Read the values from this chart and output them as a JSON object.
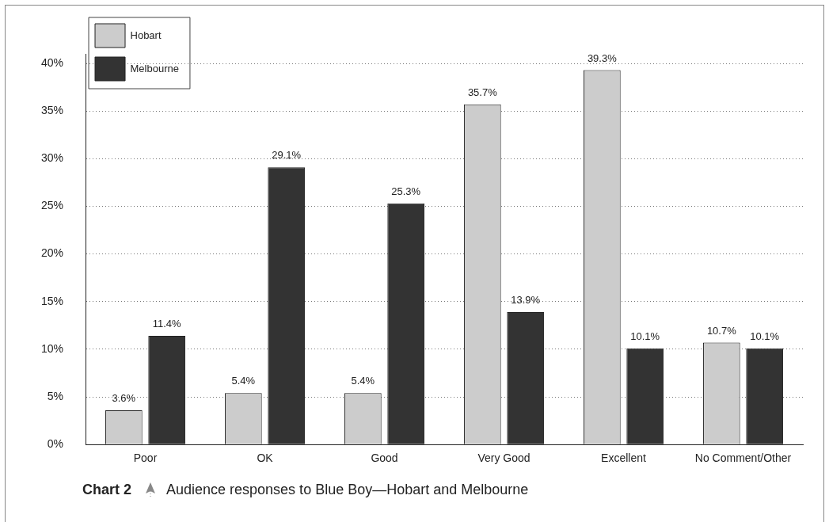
{
  "chart_data": {
    "type": "bar",
    "title": "Chart 2",
    "subtitle": "Audience responses to Blue Boy—Hobart and Melbourne",
    "categories": [
      "Poor",
      "OK",
      "Good",
      "Very Good",
      "Excellent",
      "No Comment/Other"
    ],
    "series": [
      {
        "name": "Hobart",
        "color": "#cccccc",
        "values": [
          3.6,
          5.4,
          5.4,
          35.7,
          39.3,
          10.7
        ],
        "value_labels": [
          "3.6%",
          "5.4%",
          "5.4%",
          "35.7%",
          "39.3%",
          "10.7%"
        ]
      },
      {
        "name": "Melbourne",
        "color": "#333333",
        "values": [
          11.4,
          29.1,
          25.3,
          13.9,
          10.1,
          10.1
        ],
        "value_labels": [
          "11.4%",
          "29.1%",
          "25.3%",
          "13.9%",
          "10.1%",
          "10.1%"
        ]
      }
    ],
    "ylim": [
      0,
      41
    ],
    "yticks": [
      {
        "value": 0,
        "label": "0%"
      },
      {
        "value": 5,
        "label": "5%"
      },
      {
        "value": 10,
        "label": "10%"
      },
      {
        "value": 15,
        "label": "15%"
      },
      {
        "value": 20,
        "label": "20%"
      },
      {
        "value": 25,
        "label": "25%"
      },
      {
        "value": 30,
        "label": "30%"
      },
      {
        "value": 35,
        "label": "35%"
      },
      {
        "value": 40,
        "label": "40%"
      }
    ],
    "grid": "y",
    "legend": "top left"
  }
}
